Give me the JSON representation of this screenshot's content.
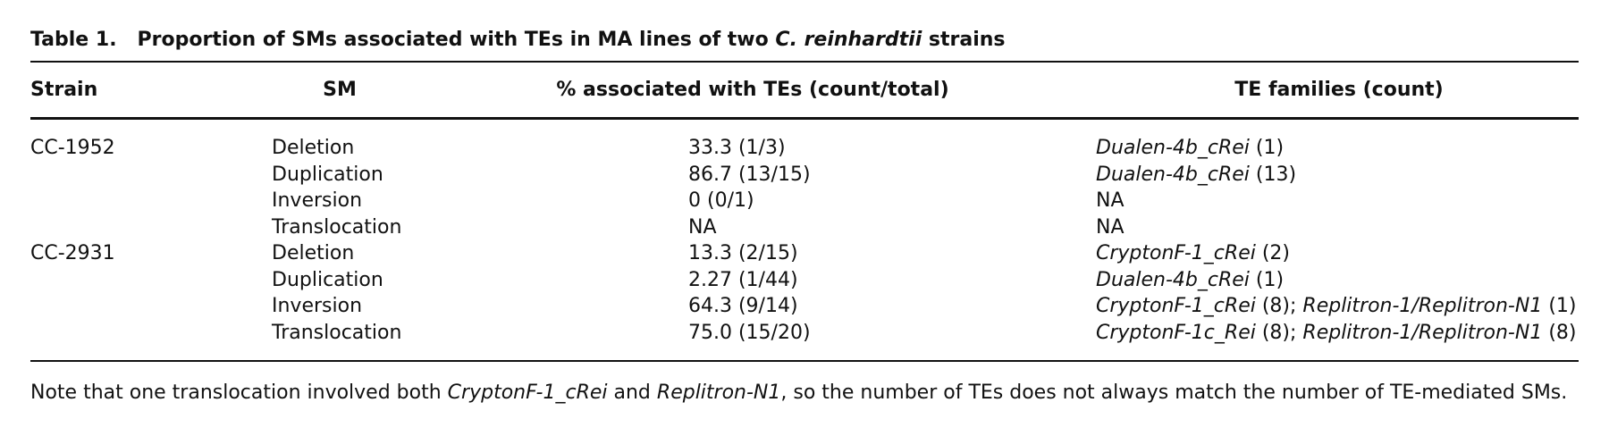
{
  "title": {
    "label": "Table 1.",
    "parts": [
      {
        "text": "Proportion of SMs associated with TEs in MA lines of two ",
        "italic": false
      },
      {
        "text": "C. reinhardtii",
        "italic": true
      },
      {
        "text": " strains",
        "italic": false
      }
    ]
  },
  "table": {
    "header": [
      "Strain",
      "SM",
      "% associated with TEs (count/total)",
      "TE families (count)"
    ],
    "groups": [
      {
        "strain": "CC-1952",
        "rows": [
          {
            "sm": "Deletion",
            "pct": "33.3 (1/3)",
            "te": [
              {
                "text": "Dualen-4b_cRei",
                "italic": true
              },
              {
                "text": " (1)",
                "italic": false
              }
            ]
          },
          {
            "sm": "Duplication",
            "pct": "86.7 (13/15)",
            "te": [
              {
                "text": "Dualen-4b_cRei",
                "italic": true
              },
              {
                "text": " (13)",
                "italic": false
              }
            ]
          },
          {
            "sm": "Inversion",
            "pct": "0 (0/1)",
            "te": [
              {
                "text": "NA",
                "italic": false
              }
            ]
          },
          {
            "sm": "Translocation",
            "pct": "NA",
            "te": [
              {
                "text": "NA",
                "italic": false
              }
            ]
          }
        ]
      },
      {
        "strain": "CC-2931",
        "rows": [
          {
            "sm": "Deletion",
            "pct": "13.3 (2/15)",
            "te": [
              {
                "text": "CryptonF-1_cRei",
                "italic": true
              },
              {
                "text": " (2)",
                "italic": false
              }
            ]
          },
          {
            "sm": "Duplication",
            "pct": "2.27 (1/44)",
            "te": [
              {
                "text": "Dualen-4b_cRei",
                "italic": true
              },
              {
                "text": " (1)",
                "italic": false
              }
            ]
          },
          {
            "sm": "Inversion",
            "pct": "64.3 (9/14)",
            "te": [
              {
                "text": "CryptonF-1_cRei",
                "italic": true
              },
              {
                "text": " (8); ",
                "italic": false
              },
              {
                "text": "Replitron-1/Replitron-N1",
                "italic": true
              },
              {
                "text": " (1)",
                "italic": false
              }
            ]
          },
          {
            "sm": "Translocation",
            "pct": "75.0 (15/20)",
            "te": [
              {
                "text": "CryptonF-1c_Rei",
                "italic": true
              },
              {
                "text": " (8); ",
                "italic": false
              },
              {
                "text": "Replitron-1/Replitron-N1",
                "italic": true
              },
              {
                "text": " (8)",
                "italic": false
              }
            ]
          }
        ]
      }
    ]
  },
  "note": [
    {
      "text": "Note that one translocation involved both ",
      "italic": false
    },
    {
      "text": "CryptonF-1_cRei",
      "italic": true
    },
    {
      "text": " and ",
      "italic": false
    },
    {
      "text": "Replitron-N1",
      "italic": true
    },
    {
      "text": ", so the number of TEs does not always match the number of TE-mediated SMs.",
      "italic": false
    }
  ]
}
